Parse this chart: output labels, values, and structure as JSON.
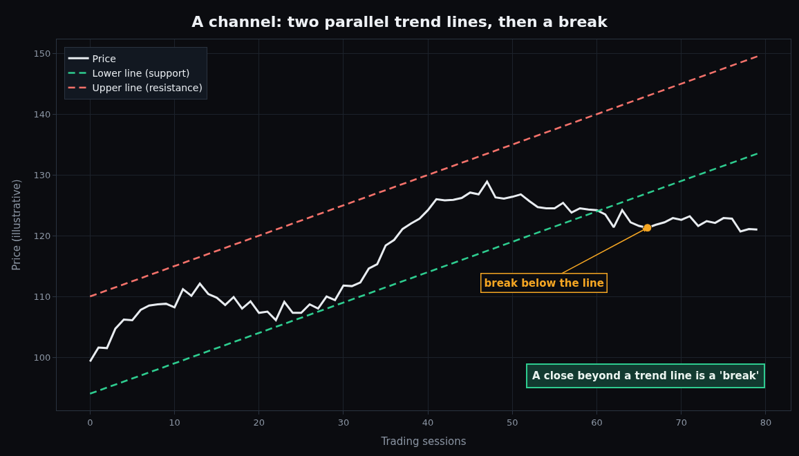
{
  "chart_data": {
    "type": "line",
    "title": "A channel: two parallel trend lines, then a break",
    "xlabel": "Trading sessions",
    "ylabel": "Price (illustrative)",
    "x": [
      0,
      1,
      2,
      3,
      4,
      5,
      6,
      7,
      8,
      9,
      10,
      11,
      12,
      13,
      14,
      15,
      16,
      17,
      18,
      19,
      20,
      21,
      22,
      23,
      24,
      25,
      26,
      27,
      28,
      29,
      30,
      31,
      32,
      33,
      34,
      35,
      36,
      37,
      38,
      39,
      40,
      41,
      42,
      43,
      44,
      45,
      46,
      47,
      48,
      49,
      50,
      51,
      52,
      53,
      54,
      55,
      56,
      57,
      58,
      59,
      60,
      61,
      62,
      63,
      64,
      65,
      66,
      67,
      68,
      69,
      70,
      71,
      72,
      73,
      74,
      75,
      76,
      77,
      78,
      79
    ],
    "series": [
      {
        "name": "Price",
        "color": "#e8ecf0",
        "line_style": "solid",
        "values": [
          99.3,
          101.6,
          101.5,
          104.7,
          106.2,
          106.1,
          107.8,
          108.5,
          108.7,
          108.8,
          108.2,
          111.2,
          110.1,
          112.1,
          110.4,
          109.8,
          108.6,
          109.9,
          108.0,
          109.2,
          107.3,
          107.5,
          106.1,
          109.1,
          107.3,
          107.3,
          108.7,
          108.0,
          110.0,
          109.4,
          111.8,
          111.7,
          112.3,
          114.6,
          115.3,
          118.4,
          119.3,
          121.1,
          122.0,
          122.8,
          124.2,
          126.0,
          125.8,
          125.9,
          126.2,
          127.1,
          126.8,
          128.9,
          126.3,
          126.1,
          126.4,
          126.8,
          125.7,
          124.7,
          124.5,
          124.5,
          125.4,
          123.8,
          124.5,
          124.3,
          124.2,
          123.5,
          121.4,
          124.2,
          122.2,
          121.6,
          121.3,
          121.8,
          122.2,
          122.9,
          122.6,
          123.2,
          121.6,
          122.4,
          122.1,
          122.9,
          122.8,
          120.7,
          121.1,
          121.0
        ]
      },
      {
        "name": "Lower line (support)",
        "color": "#2ecc8f",
        "line_style": "dashed",
        "x": [
          0,
          79
        ],
        "values": [
          94.0,
          133.5
        ]
      },
      {
        "name": "Upper line (resistance)",
        "color": "#f4726b",
        "line_style": "dashed",
        "x": [
          0,
          79
        ],
        "values": [
          110.0,
          149.5
        ]
      },
      {
        "type": "scatter",
        "marker": "circle",
        "color": "#f5a623",
        "x": [
          66
        ],
        "values": [
          121.3
        ]
      }
    ],
    "annotations": [
      {
        "text": "break below the line",
        "x": 66,
        "y": 121.3
      },
      "A close beyond a trend line is a 'break'"
    ],
    "xlim": [
      -3.95,
      82.95
    ],
    "xticks": [
      0,
      10,
      20,
      30,
      40,
      50,
      60,
      70,
      80
    ],
    "ylim": [
      91.25,
      152.3
    ],
    "yticks": [
      100,
      110,
      120,
      130,
      140,
      150
    ],
    "grid": true,
    "legend": "top left"
  }
}
